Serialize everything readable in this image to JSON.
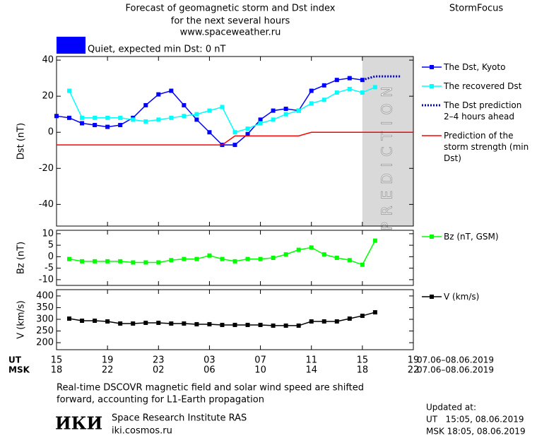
{
  "header": {
    "title_lines": [
      "Forecast of geomagnetic storm and Dst index",
      "for the next several hours",
      "www.spaceweather.ru"
    ],
    "brand": "StormFocus",
    "status": "Quiet, expected min Dst: 0 nT",
    "status_color": "#0000ff"
  },
  "chart_data": [
    {
      "type": "line",
      "ylabel": "Dst (nT)",
      "xlim": [
        0,
        28
      ],
      "ylim": [
        -52,
        42
      ],
      "yticks": [
        -40,
        -20,
        0,
        20,
        40
      ],
      "shaded_region": {
        "x": [
          24,
          28
        ],
        "label": "PREDICTION",
        "color": "#d9d9d9"
      },
      "series": [
        {
          "name": "The Dst, Kyoto",
          "color": "#0000ff",
          "markers": true,
          "style": "solid",
          "x": [
            0,
            1,
            2,
            3,
            4,
            5,
            6,
            7,
            8,
            9,
            10,
            11,
            12,
            13,
            14,
            15,
            16,
            17,
            18,
            19,
            20,
            21,
            22,
            23,
            24
          ],
          "values": [
            9,
            8,
            5,
            4,
            3,
            4,
            8,
            15,
            21,
            23,
            15,
            7,
            0,
            -7,
            -7,
            -1,
            7,
            12,
            13,
            12,
            23,
            26,
            29,
            30,
            29
          ]
        },
        {
          "name": "The recovered Dst",
          "color": "#00ffff",
          "markers": true,
          "style": "solid",
          "x": [
            1,
            2,
            3,
            4,
            5,
            6,
            7,
            8,
            9,
            10,
            11,
            12,
            13,
            14,
            15,
            16,
            17,
            18,
            19,
            20,
            21,
            22,
            23,
            24,
            25
          ],
          "values": [
            23,
            8,
            8,
            8,
            8,
            7,
            6,
            7,
            8,
            9,
            10,
            12,
            14,
            0,
            2,
            5,
            7,
            10,
            12,
            16,
            18,
            22,
            24,
            22,
            25
          ]
        },
        {
          "name": "The Dst prediction 2–4 hours ahead",
          "color": "#0000cc",
          "markers": false,
          "style": "dotted",
          "x": [
            24,
            25,
            26,
            27
          ],
          "values": [
            29,
            31,
            31,
            31
          ]
        },
        {
          "name": "Prediction of the storm strength (min Dst)",
          "color": "#ff0000",
          "markers": false,
          "style": "solid",
          "x": [
            0,
            13,
            14,
            19,
            20,
            28
          ],
          "values": [
            -7,
            -7,
            -2,
            -2,
            0,
            0
          ]
        }
      ]
    },
    {
      "type": "line",
      "ylabel": "Bz (nT)",
      "xlim": [
        0,
        28
      ],
      "ylim": [
        -12.5,
        11.5
      ],
      "yticks": [
        -10,
        -5,
        0,
        5,
        10
      ],
      "series": [
        {
          "name": "Bz (nT, GSM)",
          "color": "#00ff00",
          "markers": true,
          "style": "solid",
          "x": [
            1,
            2,
            3,
            4,
            5,
            6,
            7,
            8,
            9,
            10,
            11,
            12,
            13,
            14,
            15,
            16,
            17,
            18,
            19,
            20,
            21,
            22,
            23,
            24,
            25
          ],
          "values": [
            -1,
            -2,
            -2,
            -2,
            -2,
            -2.5,
            -2.5,
            -2.5,
            -1.5,
            -1,
            -1,
            0.5,
            -1,
            -2,
            -1,
            -1,
            -0.5,
            1,
            3,
            4,
            1,
            -0.5,
            -1.5,
            -3.5,
            7
          ]
        }
      ]
    },
    {
      "type": "line",
      "ylabel": "V (km/s)",
      "xlim": [
        0,
        28
      ],
      "ylim": [
        170,
        427
      ],
      "yticks": [
        200,
        250,
        300,
        350,
        400
      ],
      "x_axis_name": "UT",
      "xticks": [
        {
          "value": 0,
          "label": "15"
        },
        {
          "value": 4,
          "label": "19"
        },
        {
          "value": 8,
          "label": "23"
        },
        {
          "value": 12,
          "label": "03"
        },
        {
          "value": 16,
          "label": "07"
        },
        {
          "value": 20,
          "label": "11"
        },
        {
          "value": 24,
          "label": "15"
        },
        {
          "value": 28,
          "label": "19"
        }
      ],
      "x_date_range": "07.06–08.06.2019",
      "x2_axis_name": "MSK",
      "x2ticks": [
        {
          "value": 0,
          "label": "18"
        },
        {
          "value": 4,
          "label": "22"
        },
        {
          "value": 8,
          "label": "02"
        },
        {
          "value": 12,
          "label": "06"
        },
        {
          "value": 16,
          "label": "10"
        },
        {
          "value": 20,
          "label": "14"
        },
        {
          "value": 24,
          "label": "18"
        },
        {
          "value": 28,
          "label": "22"
        }
      ],
      "x2_date_range": "07.06–08.06.2019",
      "series": [
        {
          "name": "V (km/s)",
          "color": "#000000",
          "markers": true,
          "style": "solid",
          "x": [
            1,
            2,
            3,
            4,
            5,
            6,
            7,
            8,
            9,
            10,
            11,
            12,
            13,
            14,
            15,
            16,
            17,
            18,
            19,
            20,
            21,
            22,
            23,
            24,
            25
          ],
          "values": [
            303,
            294,
            294,
            291,
            282,
            282,
            285,
            285,
            282,
            282,
            279,
            279,
            276,
            276,
            276,
            276,
            273,
            273,
            273,
            291,
            291,
            291,
            303,
            315,
            330
          ]
        }
      ]
    }
  ],
  "footer": {
    "note_lines": [
      "Real-time DSCOVR magnetic field and solar wind speed are shifted",
      "forward, accounting for L1-Earth propagation"
    ],
    "logo": "ИКИ",
    "institute": "Space Research Institute RAS",
    "site": "iki.cosmos.ru",
    "updated_label": "Updated at:",
    "updated_ut": "UT   15:05, 08.06.2019",
    "updated_msk": "MSK 18:05, 08.06.2019"
  }
}
